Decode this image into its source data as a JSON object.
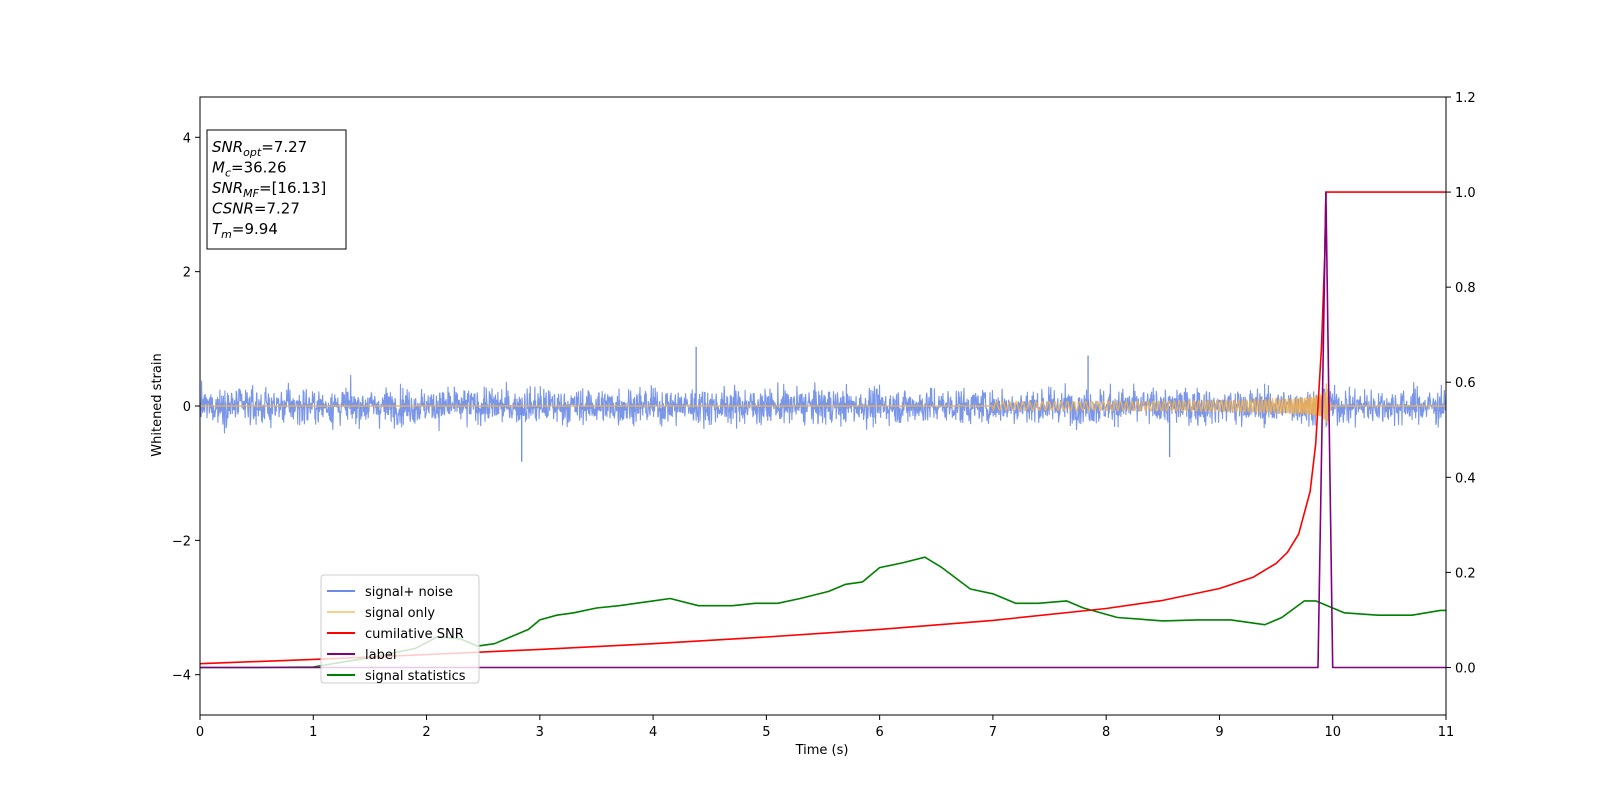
{
  "chart_data": {
    "type": "line",
    "xlabel": "Time (s)",
    "ylabel": "Whitened strain",
    "xlim": [
      0,
      11
    ],
    "ylim_left": [
      -4.6,
      4.6
    ],
    "ylim_right": [
      -0.1,
      1.2
    ],
    "x_ticks": [
      0,
      1,
      2,
      3,
      4,
      5,
      6,
      7,
      8,
      9,
      10,
      11
    ],
    "y_ticks_left": [
      -4,
      -2,
      0,
      2,
      4
    ],
    "y_ticks_left_labels": [
      "−4",
      "−2",
      "0",
      "2",
      "4"
    ],
    "y_ticks_right": [
      0.0,
      0.2,
      0.4,
      0.6,
      0.8,
      1.0,
      1.2
    ],
    "y_ticks_right_labels": [
      "0.0",
      "0.2",
      "0.4",
      "0.6",
      "0.8",
      "1.0",
      "1.2"
    ],
    "grid": false,
    "legend_position": "lower-left",
    "stats_box": [
      {
        "base": "SNR",
        "sub": "opt",
        "value": "=7.27"
      },
      {
        "base": "M",
        "sub": "c",
        "value": "=36.26"
      },
      {
        "base": "SNR",
        "sub": "MF",
        "value": "=[16.13]"
      },
      {
        "base": "CSNR",
        "sub": "",
        "value": "=7.27"
      },
      {
        "base": "T",
        "sub": "m",
        "value": "=9.94"
      }
    ],
    "series": [
      {
        "name": "signal+ noise",
        "color": "#6b8be6",
        "axis": "left",
        "description_amplitude": 0.3,
        "noise_peaks": [
          {
            "x": 4.38,
            "y": 0.88
          },
          {
            "x": 7.84,
            "y": 0.75
          },
          {
            "x": 2.84,
            "y": -0.83
          },
          {
            "x": 8.56,
            "y": -0.76
          }
        ]
      },
      {
        "name": "signal only",
        "color": "#f5b14a",
        "axis": "left",
        "merger_time": 9.94,
        "peak_amplitude": 0.38
      },
      {
        "name": "cumilative SNR",
        "color": "#ff0000",
        "axis": "right",
        "x": [
          0,
          1,
          2,
          3,
          4,
          5,
          6,
          7,
          8,
          8.5,
          9,
          9.3,
          9.5,
          9.6,
          9.7,
          9.8,
          9.85,
          9.9,
          9.93,
          9.94,
          11
        ],
        "y": [
          0.008,
          0.017,
          0.027,
          0.038,
          0.05,
          0.064,
          0.08,
          0.099,
          0.124,
          0.141,
          0.166,
          0.19,
          0.219,
          0.242,
          0.281,
          0.37,
          0.47,
          0.67,
          0.87,
          1.0,
          1.0
        ]
      },
      {
        "name": "label",
        "color": "#800080",
        "axis": "right",
        "x": [
          0,
          9.87,
          9.94,
          10.0,
          11
        ],
        "y": [
          0,
          0,
          1.0,
          0,
          0
        ]
      },
      {
        "name": "signal statistics",
        "color": "#008000",
        "axis": "right",
        "x": [
          0,
          0.5,
          1.0,
          1.3,
          1.6,
          1.9,
          2.1,
          2.3,
          2.45,
          2.6,
          2.9,
          3.0,
          3.15,
          3.3,
          3.5,
          3.7,
          4.0,
          4.15,
          4.4,
          4.7,
          4.9,
          5.1,
          5.3,
          5.55,
          5.7,
          5.85,
          6.0,
          6.2,
          6.4,
          6.55,
          6.8,
          7.0,
          7.2,
          7.4,
          7.65,
          7.8,
          8.1,
          8.5,
          8.8,
          9.1,
          9.4,
          9.55,
          9.75,
          9.85,
          10.1,
          10.4,
          10.7,
          10.95,
          11.0
        ],
        "y": [
          0.0,
          0.0,
          0.001,
          0.013,
          0.025,
          0.04,
          0.065,
          0.06,
          0.045,
          0.05,
          0.08,
          0.1,
          0.11,
          0.115,
          0.125,
          0.13,
          0.14,
          0.145,
          0.13,
          0.13,
          0.135,
          0.135,
          0.145,
          0.16,
          0.175,
          0.18,
          0.21,
          0.22,
          0.232,
          0.21,
          0.165,
          0.155,
          0.135,
          0.135,
          0.14,
          0.125,
          0.105,
          0.098,
          0.1,
          0.1,
          0.09,
          0.105,
          0.14,
          0.14,
          0.115,
          0.11,
          0.11,
          0.12,
          0.12
        ]
      }
    ]
  }
}
